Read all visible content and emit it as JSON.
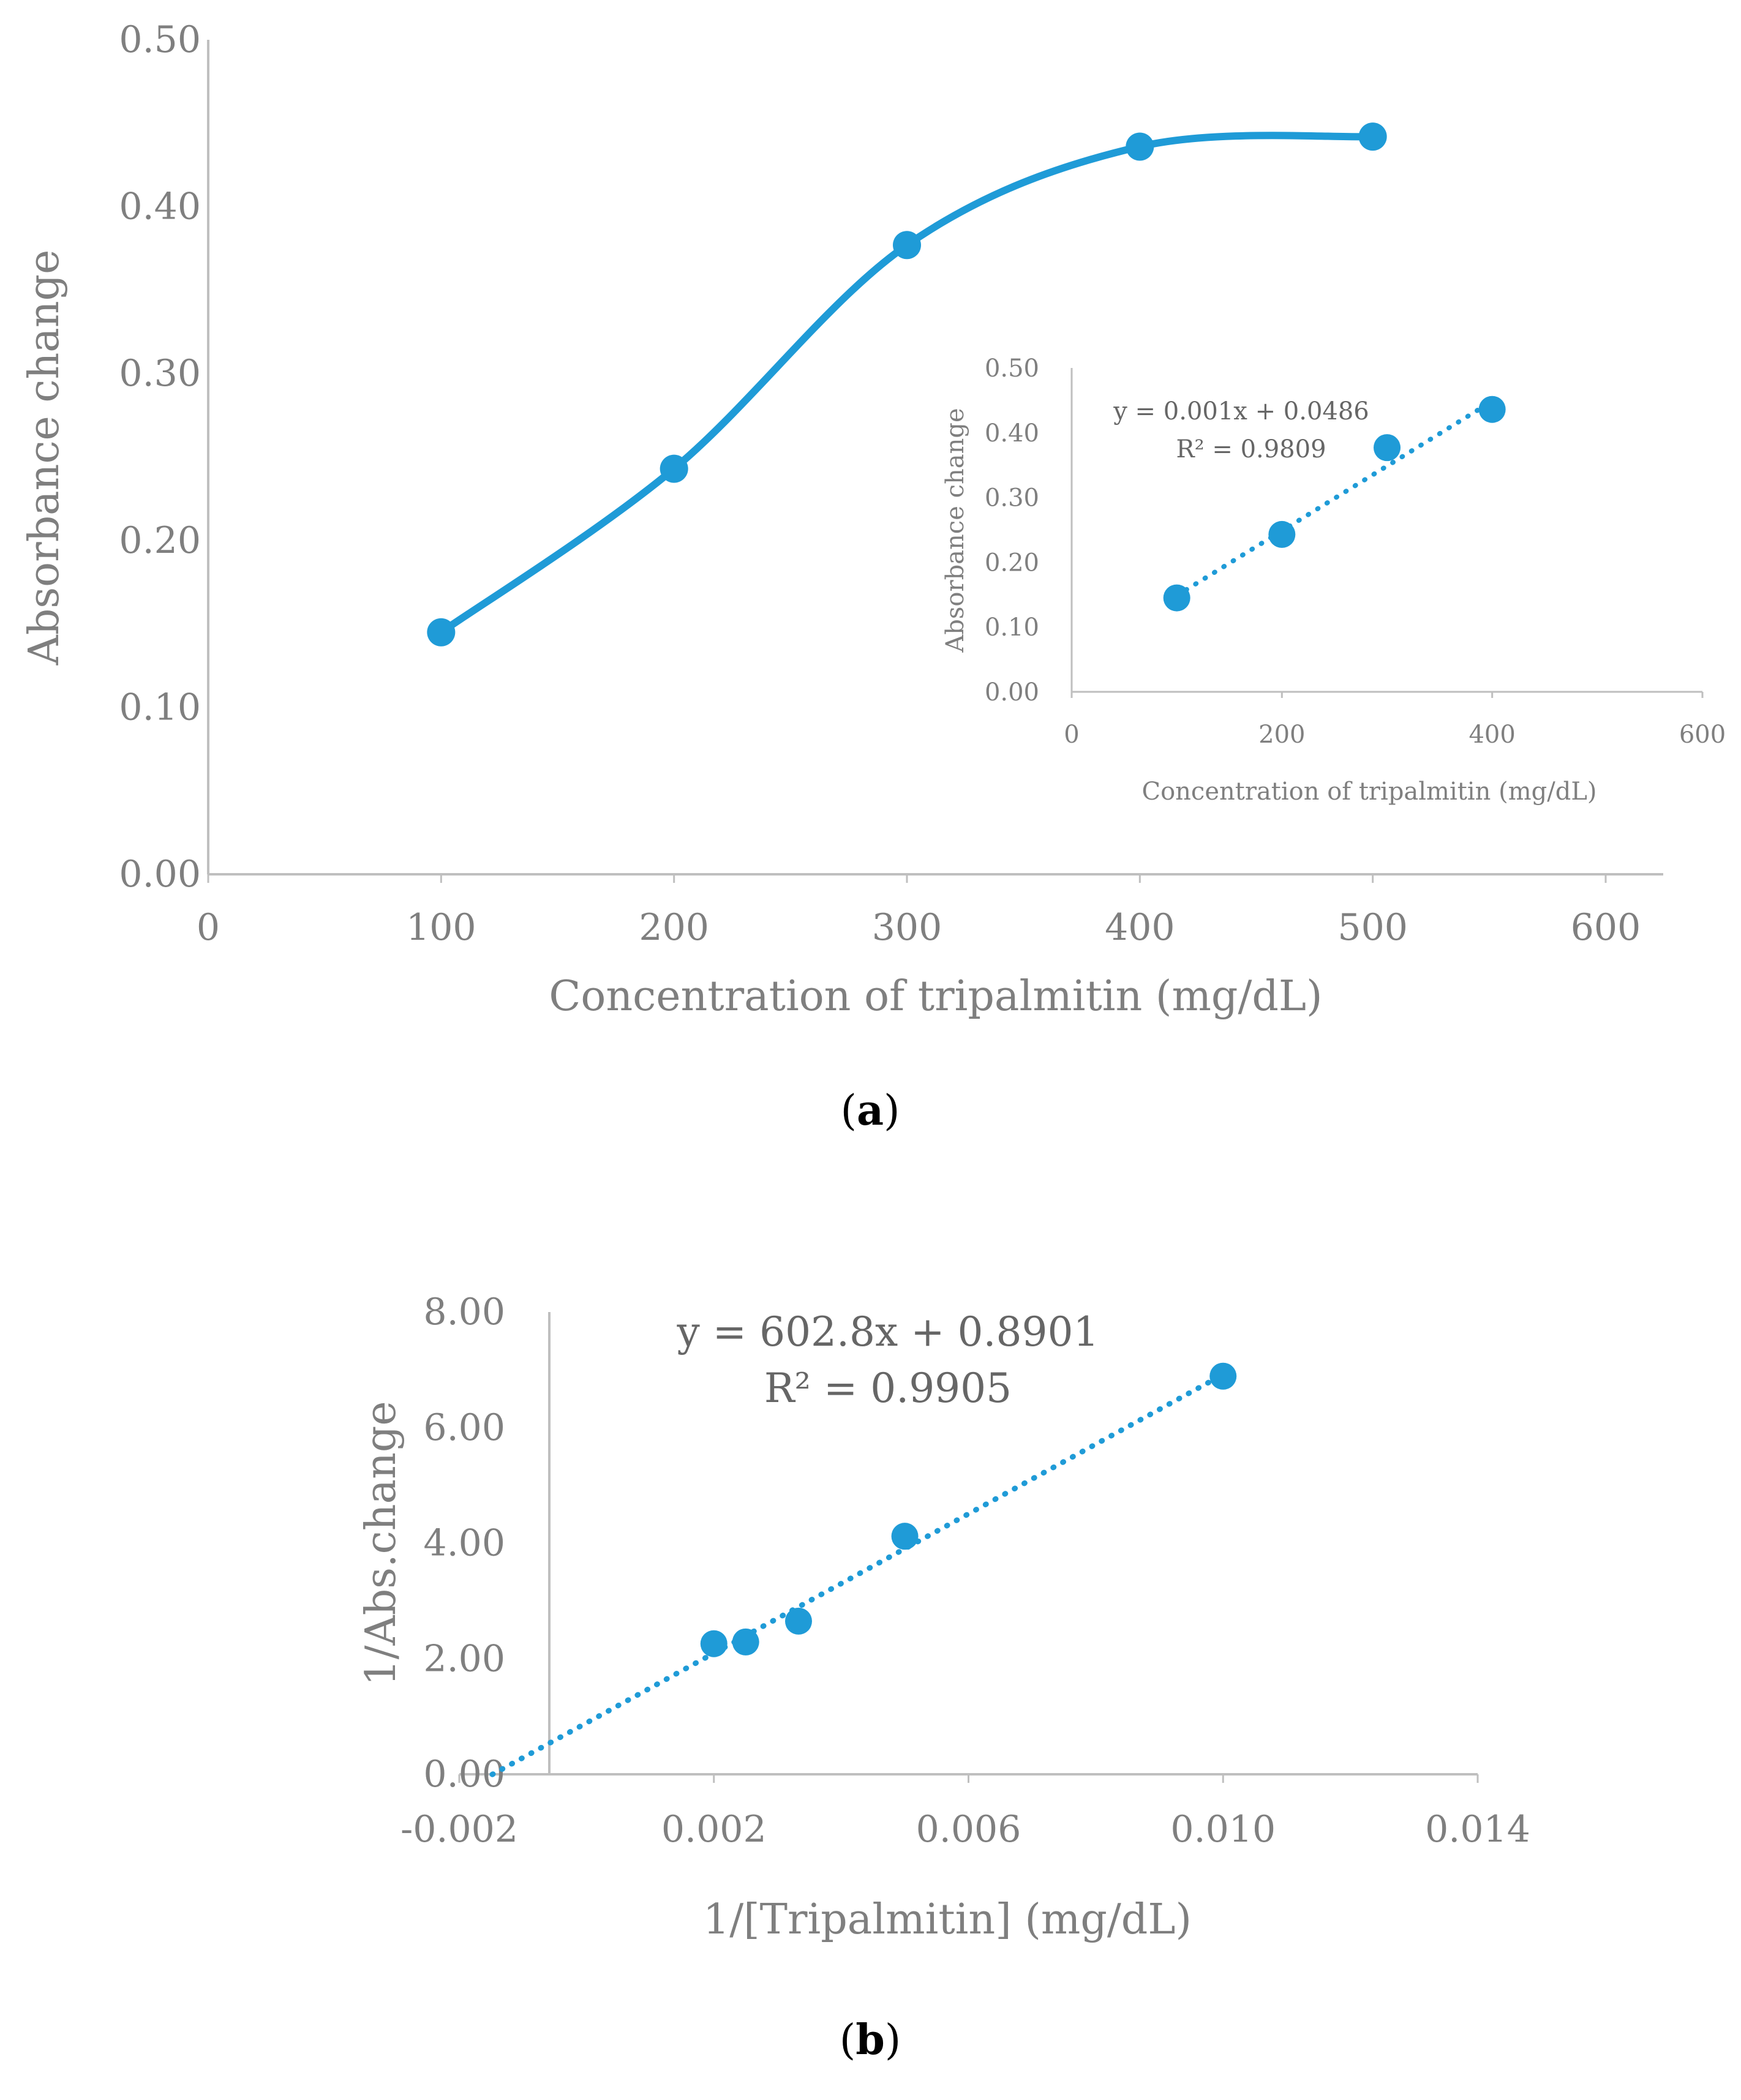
{
  "colors": {
    "series": "#1f9bd7",
    "axis": "#bfbfbf",
    "text": "#7f7f7f"
  },
  "chart_data": [
    {
      "id": "a-main",
      "type": "line",
      "smooth": true,
      "xlabel": "Concentration of tripalmitin (mg/dL)",
      "ylabel": "Absorbance change",
      "xlim": [
        0,
        600
      ],
      "ylim": [
        0,
        0.5
      ],
      "xticks": [
        "0",
        "100",
        "200",
        "300",
        "400",
        "500",
        "600"
      ],
      "yticks": [
        "0.00",
        "0.10",
        "0.20",
        "0.30",
        "0.40",
        "0.50"
      ],
      "x": [
        100,
        200,
        300,
        400,
        500
      ],
      "y": [
        0.145,
        0.243,
        0.377,
        0.436,
        0.442
      ],
      "grid": false
    },
    {
      "id": "a-inset",
      "type": "scatter",
      "trendline": "linear",
      "xlabel": "Concentration of tripalmitin (mg/dL)",
      "ylabel": "Absorbance change",
      "xlim": [
        0,
        600
      ],
      "ylim": [
        0,
        0.5
      ],
      "xticks": [
        "0",
        "200",
        "400",
        "600"
      ],
      "yticks": [
        "0.00",
        "0.10",
        "0.20",
        "0.30",
        "0.40",
        "0.50"
      ],
      "x": [
        100,
        200,
        300,
        400
      ],
      "y": [
        0.145,
        0.243,
        0.377,
        0.436
      ],
      "equation": "y = 0.001x + 0.0486",
      "r2": "R² = 0.9809",
      "fit": {
        "slope": 0.001,
        "intercept": 0.0486,
        "x_from": 100,
        "x_to": 400
      },
      "grid": false
    },
    {
      "id": "b",
      "type": "scatter",
      "trendline": "linear",
      "xlabel": "1/[Tripalmitin] (mg/dL)",
      "ylabel": "1/Abs.change",
      "xlim": [
        -0.002,
        0.014
      ],
      "ylim": [
        0,
        8
      ],
      "xticks": [
        "-0.002",
        "0.002",
        "0.006",
        "0.010",
        "0.014"
      ],
      "yticks": [
        "0.00",
        "2.00",
        "4.00",
        "6.00",
        "8.00"
      ],
      "x": [
        0.002,
        0.0025,
        0.00333,
        0.005,
        0.01
      ],
      "y": [
        2.26,
        2.29,
        2.65,
        4.12,
        6.89
      ],
      "equation": "y = 602.8x + 0.8901",
      "r2": "R² = 0.9905",
      "fit": {
        "slope": 602.8,
        "intercept": 0.8901,
        "x_from": -0.00148,
        "x_to": 0.01
      },
      "grid": false
    }
  ],
  "captions": {
    "a": {
      "open": "(",
      "letter": "a",
      "close": ")"
    },
    "b": {
      "open": "(",
      "letter": "b",
      "close": ")"
    }
  }
}
